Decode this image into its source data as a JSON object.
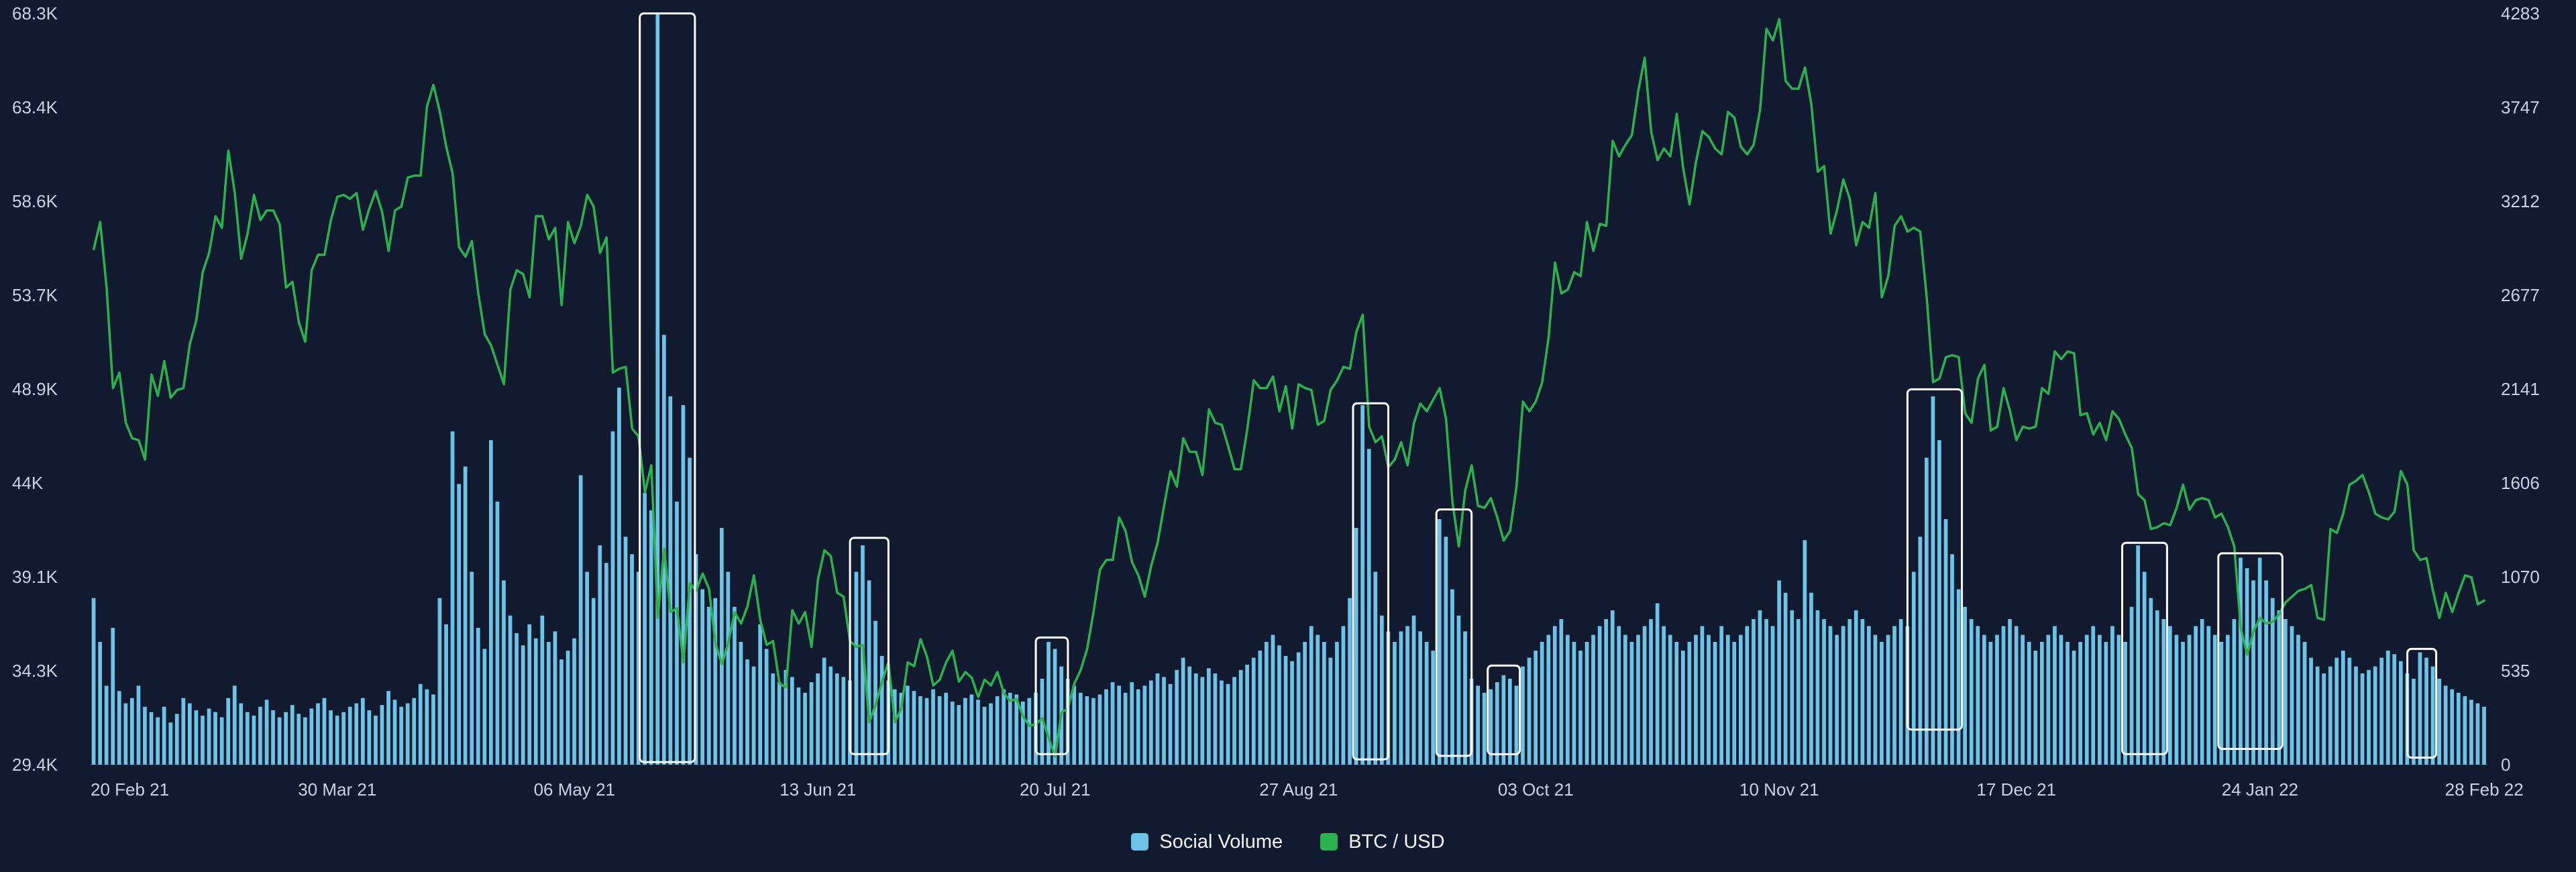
{
  "colors": {
    "background": "#111a2e",
    "axis_text": "#c9d2e4",
    "highlight_box": "#ffffff",
    "baseline": "#232e48"
  },
  "chart_data": {
    "type": "bar",
    "subtype": "bar+line combo",
    "title": "",
    "x_range": [
      "20 Feb 21",
      "28 Feb 22"
    ],
    "x_ticks": [
      {
        "label": "20 Feb 21",
        "day": 0
      },
      {
        "label": "30 Mar 21",
        "day": 38
      },
      {
        "label": "06 May 21",
        "day": 75
      },
      {
        "label": "13 Jun 21",
        "day": 113
      },
      {
        "label": "20 Jul 21",
        "day": 150
      },
      {
        "label": "27 Aug 21",
        "day": 188
      },
      {
        "label": "03 Oct 21",
        "day": 225
      },
      {
        "label": "10 Nov 21",
        "day": 263
      },
      {
        "label": "17 Dec 21",
        "day": 300
      },
      {
        "label": "24 Jan 22",
        "day": 338
      },
      {
        "label": "28 Feb 22",
        "day": 373
      }
    ],
    "left_axis": {
      "name": "BTC / USD price (thousands USD)",
      "min": 29.4,
      "max": 68.3,
      "ticks_top_to_bottom": [
        "68.3K",
        "63.4K",
        "58.6K",
        "53.7K",
        "48.9K",
        "44K",
        "39.1K",
        "34.3K",
        "29.4K"
      ]
    },
    "right_axis": {
      "name": "Social Volume",
      "min": 0,
      "max": 4283,
      "ticks_top_to_bottom": [
        "4283",
        "3747",
        "3212",
        "2677",
        "2141",
        "1606",
        "1070",
        "535",
        "0"
      ]
    },
    "legend": [
      {
        "label": "Social Volume",
        "color": "#6cc3e8"
      },
      {
        "label": "BTC / USD",
        "color": "#2bb24f"
      }
    ],
    "series": [
      {
        "name": "Social Volume",
        "type": "bar",
        "axis": "right",
        "color": "#6cc3e8",
        "values": [
          950,
          700,
          450,
          780,
          420,
          350,
          380,
          450,
          330,
          300,
          270,
          330,
          240,
          290,
          380,
          350,
          310,
          280,
          320,
          300,
          270,
          380,
          450,
          350,
          300,
          280,
          330,
          370,
          310,
          270,
          300,
          340,
          290,
          270,
          320,
          350,
          380,
          310,
          280,
          300,
          330,
          350,
          380,
          310,
          280,
          340,
          420,
          370,
          330,
          350,
          380,
          460,
          430,
          400,
          950,
          800,
          1900,
          1600,
          1700,
          1100,
          780,
          660,
          1850,
          1500,
          1050,
          850,
          750,
          680,
          800,
          720,
          850,
          700,
          760,
          600,
          650,
          720,
          1650,
          1100,
          950,
          1250,
          1150,
          1900,
          2150,
          1300,
          1200,
          1100,
          1550,
          1450,
          4283,
          2450,
          2100,
          1500,
          2050,
          1750,
          1200,
          1000,
          900,
          950,
          1350,
          1100,
          900,
          700,
          600,
          560,
          800,
          660,
          520,
          470,
          540,
          500,
          440,
          410,
          470,
          520,
          610,
          560,
          520,
          500,
          480,
          1100,
          1250,
          1050,
          820,
          620,
          480,
          430,
          410,
          450,
          420,
          390,
          380,
          430,
          390,
          410,
          360,
          340,
          380,
          400,
          370,
          330,
          350,
          390,
          430,
          410,
          400,
          360,
          380,
          410,
          490,
          700,
          660,
          560,
          490,
          450,
          410,
          390,
          380,
          400,
          430,
          470,
          450,
          410,
          470,
          430,
          450,
          480,
          520,
          500,
          460,
          540,
          610,
          560,
          520,
          500,
          550,
          520,
          480,
          460,
          500,
          540,
          570,
          610,
          650,
          700,
          740,
          680,
          620,
          590,
          640,
          700,
          790,
          740,
          700,
          610,
          700,
          790,
          950,
          1350,
          2050,
          1800,
          1100,
          850,
          760,
          700,
          760,
          790,
          850,
          760,
          700,
          650,
          1400,
          1300,
          1000,
          850,
          760,
          490,
          450,
          410,
          430,
          470,
          510,
          490,
          450,
          560,
          610,
          650,
          700,
          740,
          790,
          830,
          740,
          700,
          650,
          700,
          740,
          790,
          830,
          880,
          790,
          740,
          700,
          740,
          790,
          830,
          920,
          790,
          740,
          700,
          650,
          700,
          740,
          790,
          740,
          700,
          790,
          740,
          700,
          740,
          790,
          830,
          880,
          830,
          790,
          1050,
          980,
          880,
          830,
          1280,
          980,
          880,
          830,
          790,
          740,
          790,
          830,
          880,
          830,
          790,
          740,
          700,
          740,
          790,
          830,
          790,
          1100,
          1300,
          1750,
          2100,
          1850,
          1400,
          1200,
          1000,
          900,
          830,
          790,
          740,
          700,
          740,
          790,
          830,
          790,
          740,
          700,
          650,
          700,
          740,
          790,
          740,
          700,
          650,
          700,
          740,
          790,
          740,
          700,
          790,
          740,
          700,
          900,
          1250,
          1100,
          950,
          880,
          830,
          790,
          740,
          700,
          740,
          790,
          830,
          790,
          740,
          700,
          740,
          830,
          1180,
          1120,
          1050,
          1180,
          1050,
          950,
          880,
          830,
          790,
          740,
          700,
          610,
          560,
          520,
          560,
          610,
          650,
          610,
          560,
          520,
          540,
          560,
          610,
          650,
          630,
          590,
          520,
          490,
          640,
          610,
          560,
          490,
          450,
          430,
          410,
          390,
          370,
          350,
          330
        ]
      },
      {
        "name": "BTC / USD",
        "type": "line",
        "axis": "left",
        "color": "#2bb24f",
        "values": [
          56.1,
          57.5,
          54.1,
          48.9,
          49.7,
          47.1,
          46.3,
          46.2,
          45.2,
          49.6,
          48.5,
          50.3,
          48.4,
          48.8,
          48.9,
          51.2,
          52.4,
          54.9,
          55.9,
          57.8,
          57.2,
          61.2,
          59.0,
          55.6,
          56.9,
          58.9,
          57.6,
          58.1,
          58.1,
          57.4,
          54.1,
          54.4,
          52.3,
          51.3,
          55.0,
          55.8,
          55.8,
          57.6,
          58.8,
          58.9,
          58.7,
          59.0,
          57.1,
          58.2,
          59.1,
          58.0,
          56.0,
          58.1,
          58.3,
          59.8,
          59.9,
          59.9,
          63.5,
          64.6,
          63.2,
          61.4,
          60.0,
          56.2,
          55.7,
          56.5,
          53.8,
          51.7,
          51.1,
          50.1,
          49.1,
          54.0,
          55.0,
          54.8,
          53.6,
          57.8,
          57.8,
          56.6,
          57.2,
          53.2,
          57.5,
          56.4,
          57.3,
          58.9,
          58.3,
          55.9,
          56.7,
          49.7,
          49.9,
          50.0,
          46.8,
          46.4,
          43.5,
          44.9,
          37.0,
          40.6,
          37.3,
          37.5,
          34.7,
          38.8,
          38.4,
          39.3,
          38.5,
          35.7,
          34.6,
          35.7,
          37.3,
          36.7,
          37.6,
          39.2,
          36.9,
          35.6,
          35.8,
          33.6,
          33.4,
          37.4,
          36.7,
          37.3,
          35.5,
          39.0,
          40.5,
          40.2,
          38.3,
          38.1,
          35.8,
          35.5,
          35.6,
          31.6,
          32.5,
          33.7,
          34.7,
          31.6,
          32.3,
          34.7,
          34.5,
          35.9,
          35.0,
          33.5,
          33.8,
          34.7,
          35.3,
          33.7,
          34.2,
          33.9,
          32.9,
          33.8,
          33.5,
          34.2,
          33.1,
          32.7,
          32.8,
          31.9,
          31.4,
          31.5,
          31.8,
          30.8,
          29.8,
          32.1,
          32.3,
          33.6,
          34.3,
          35.4,
          37.3,
          39.5,
          40.0,
          40.0,
          42.2,
          41.5,
          39.9,
          39.2,
          38.1,
          39.7,
          40.9,
          42.8,
          44.6,
          43.8,
          46.3,
          45.6,
          45.6,
          44.4,
          47.8,
          47.1,
          47.0,
          45.9,
          44.7,
          44.7,
          46.8,
          49.3,
          48.9,
          48.9,
          49.5,
          47.7,
          49.0,
          46.8,
          49.1,
          48.9,
          48.8,
          47.0,
          47.2,
          48.8,
          49.3,
          50.0,
          49.9,
          51.8,
          52.7,
          46.9,
          46.1,
          46.4,
          44.8,
          45.2,
          46.1,
          44.9,
          47.1,
          48.1,
          47.7,
          48.3,
          48.9,
          47.3,
          43.0,
          40.7,
          43.6,
          44.9,
          42.8,
          42.7,
          43.2,
          42.2,
          41.0,
          41.5,
          43.8,
          48.2,
          47.7,
          48.2,
          49.2,
          51.5,
          55.4,
          53.8,
          54.0,
          54.9,
          54.7,
          57.5,
          56.0,
          57.4,
          57.3,
          61.7,
          60.9,
          61.5,
          62.0,
          64.3,
          66.0,
          62.2,
          60.7,
          61.3,
          60.9,
          63.1,
          60.3,
          58.4,
          60.6,
          62.2,
          61.9,
          61.3,
          61.0,
          63.2,
          62.9,
          61.4,
          61.0,
          61.5,
          63.3,
          67.5,
          66.9,
          68.0,
          64.8,
          64.4,
          64.4,
          65.5,
          63.6,
          60.1,
          60.4,
          56.9,
          58.1,
          59.7,
          58.7,
          56.3,
          57.5,
          57.2,
          59.0,
          53.6,
          54.7,
          57.3,
          57.8,
          57.0,
          57.2,
          57.0,
          53.6,
          49.2,
          49.4,
          50.5,
          50.6,
          50.5,
          47.6,
          47.1,
          49.4,
          50.1,
          46.7,
          46.9,
          48.9,
          47.7,
          46.2,
          46.9,
          46.8,
          46.9,
          48.9,
          48.6,
          50.8,
          50.4,
          50.8,
          50.7,
          47.5,
          47.6,
          46.5,
          47.1,
          46.2,
          47.7,
          47.3,
          46.5,
          45.8,
          43.4,
          43.1,
          41.6,
          41.7,
          41.9,
          41.8,
          42.7,
          43.9,
          42.6,
          43.1,
          43.2,
          43.1,
          42.2,
          42.4,
          41.7,
          40.7,
          36.5,
          35.1,
          36.3,
          37.0,
          36.7,
          36.8,
          37.2,
          37.8,
          38.1,
          38.4,
          38.5,
          38.7,
          37.0,
          36.9,
          41.6,
          41.4,
          42.4,
          43.9,
          44.1,
          44.4,
          43.5,
          42.4,
          42.2,
          42.1,
          42.5,
          44.6,
          43.9,
          40.5,
          40.0,
          40.1,
          38.4,
          37.0,
          38.3,
          37.3,
          38.3,
          39.2,
          39.1,
          37.7,
          37.9
        ]
      }
    ],
    "highlight_boxes": [
      {
        "start_day": 85.7,
        "end_day": 94.3,
        "top": 4283,
        "bottom": 15
      },
      {
        "start_day": 118.5,
        "end_day": 124.5,
        "top": 1293,
        "bottom": 60
      },
      {
        "start_day": 147.5,
        "end_day": 152.5,
        "top": 725,
        "bottom": 60
      },
      {
        "start_day": 197.0,
        "end_day": 202.5,
        "top": 2060,
        "bottom": 30
      },
      {
        "start_day": 210.0,
        "end_day": 215.5,
        "top": 1455,
        "bottom": 50
      },
      {
        "start_day": 218.0,
        "end_day": 223.0,
        "top": 565,
        "bottom": 60
      },
      {
        "start_day": 283.5,
        "end_day": 292.0,
        "top": 2140,
        "bottom": 200
      },
      {
        "start_day": 317.0,
        "end_day": 324.0,
        "top": 1265,
        "bottom": 60
      },
      {
        "start_day": 332.0,
        "end_day": 342.0,
        "top": 1205,
        "bottom": 90
      },
      {
        "start_day": 361.5,
        "end_day": 366.0,
        "top": 660,
        "bottom": 40
      }
    ]
  }
}
